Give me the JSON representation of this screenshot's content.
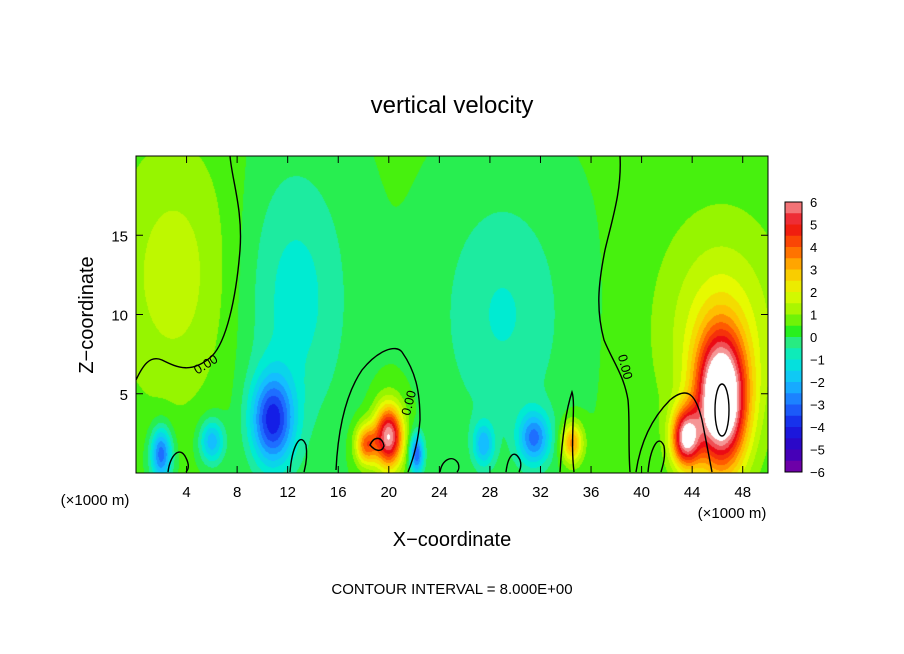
{
  "chart_data": {
    "type": "heatmap",
    "title": "vertical velocity",
    "xlabel": "X−coordinate",
    "ylabel": "Z−coordinate",
    "x_unit_left": "(×1000 m)",
    "x_unit_right": "(×1000 m)",
    "xlim": [
      0,
      50
    ],
    "ylim": [
      0,
      20
    ],
    "x_ticks": [
      4,
      8,
      12,
      16,
      20,
      24,
      28,
      32,
      36,
      40,
      44,
      48
    ],
    "y_ticks": [
      5,
      10,
      15
    ],
    "contour_interval_text": "CONTOUR INTERVAL = 8.000E+00",
    "contour_labels": [
      "0.00",
      "0.00",
      "0.00"
    ],
    "colorbar": {
      "ticks": [
        "6",
        "5",
        "4",
        "3",
        "2",
        "1",
        "0",
        "−1",
        "−2",
        "−3",
        "−4",
        "−5",
        "−6"
      ],
      "range": [
        -6,
        6
      ]
    },
    "background_value": 0.3,
    "features": [
      {
        "x": 46.3,
        "z": 4.5,
        "sx": 1.4,
        "sz": 3.0,
        "amp": 7.5
      },
      {
        "x": 46.3,
        "z": 9.0,
        "sx": 3.5,
        "sz": 5.0,
        "amp": 1.6
      },
      {
        "x": 43.5,
        "z": 2.2,
        "sx": 0.8,
        "sz": 1.3,
        "amp": 5.5
      },
      {
        "x": 20.0,
        "z": 2.3,
        "sx": 0.8,
        "sz": 1.4,
        "amp": 6.0
      },
      {
        "x": 18.2,
        "z": 1.8,
        "sx": 0.6,
        "sz": 0.9,
        "amp": 3.5
      },
      {
        "x": 34.5,
        "z": 1.9,
        "sx": 0.6,
        "sz": 0.9,
        "amp": 3.2
      },
      {
        "x": 10.8,
        "z": 3.3,
        "sx": 1.2,
        "sz": 2.0,
        "amp": -4.0
      },
      {
        "x": 2.0,
        "z": 1.2,
        "sx": 0.6,
        "sz": 1.2,
        "amp": -3.5
      },
      {
        "x": 6.0,
        "z": 2.0,
        "sx": 0.7,
        "sz": 1.0,
        "amp": -2.5
      },
      {
        "x": 22.2,
        "z": 1.2,
        "sx": 0.4,
        "sz": 0.9,
        "amp": -3.5
      },
      {
        "x": 27.5,
        "z": 1.8,
        "sx": 0.6,
        "sz": 1.0,
        "amp": -2.2
      },
      {
        "x": 31.5,
        "z": 2.2,
        "sx": 0.9,
        "sz": 1.2,
        "amp": -3.0
      },
      {
        "x": 3.0,
        "z": 12.5,
        "sx": 3.5,
        "sz": 6.0,
        "amp": 1.2
      },
      {
        "x": 12.5,
        "z": 11.0,
        "sx": 3.0,
        "sz": 6.0,
        "amp": -1.3
      },
      {
        "x": 29.0,
        "z": 10.0,
        "sx": 3.5,
        "sz": 5.5,
        "amp": -1.1
      }
    ]
  }
}
